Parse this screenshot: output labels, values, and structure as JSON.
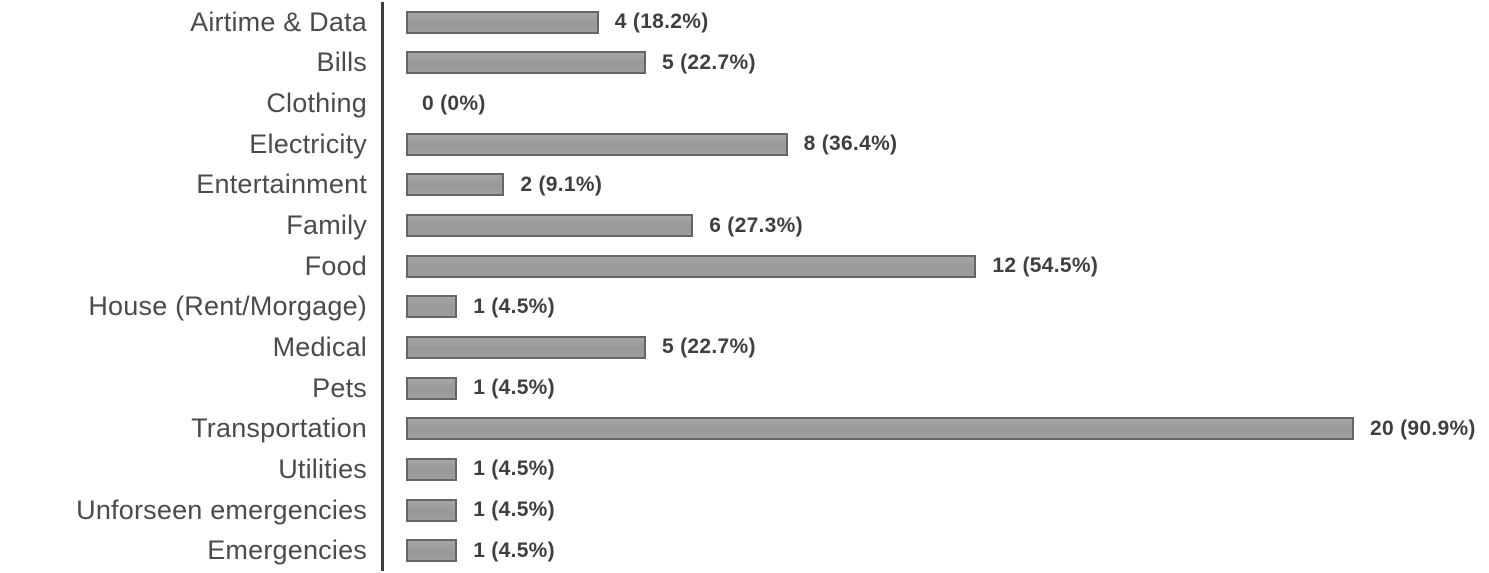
{
  "chart_data": {
    "type": "bar",
    "orientation": "horizontal",
    "title": "",
    "xlabel": "",
    "ylabel": "",
    "xlim": [
      0,
      22
    ],
    "grid": false,
    "legend": false,
    "categories": [
      "Airtime & Data",
      "Bills",
      "Clothing",
      "Electricity",
      "Entertainment",
      "Family",
      "Food",
      "House (Rent/Morgage)",
      "Medical",
      "Pets",
      "Transportation",
      "Utilities",
      "Unforseen emergencies",
      "Emergencies"
    ],
    "values": [
      4,
      5,
      0,
      8,
      2,
      6,
      12,
      1,
      5,
      1,
      20,
      1,
      1,
      1
    ],
    "value_labels": [
      "4 (18.2%)",
      "5 (22.7%)",
      "0 (0%)",
      "8 (36.4%)",
      "2 (9.1%)",
      "6 (27.3%)",
      "12 (54.5%)",
      "1 (4.5%)",
      "5 (22.7%)",
      "1 (4.5%)",
      "20 (90.9%)",
      "1 (4.5%)",
      "1 (4.5%)",
      "1 (4.5%)"
    ],
    "colors": {
      "bar_fill": "#9b9b9b",
      "bar_border": "#666666",
      "axis_line": "#3d3d3d",
      "category_text": "#4b4b4b",
      "value_text": "#3f3f3f",
      "background": "#ffffff"
    }
  }
}
